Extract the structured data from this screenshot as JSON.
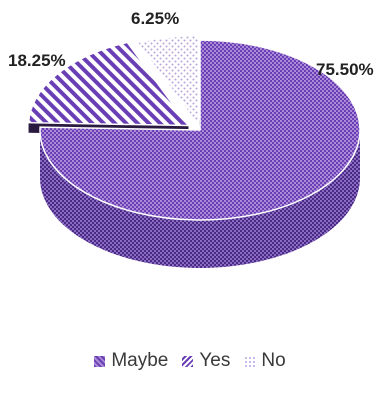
{
  "chart_data": {
    "type": "pie",
    "categories": [
      "Maybe",
      "Yes",
      "No"
    ],
    "values": [
      75.5,
      18.25,
      6.25
    ],
    "data_labels": [
      "75.50%",
      "18.25%",
      "6.25%"
    ],
    "legend_position": "bottom",
    "colors": {
      "Maybe": "#7a4fc0",
      "Yes": "#6a3fb5",
      "No": "#c9b6e6"
    }
  }
}
